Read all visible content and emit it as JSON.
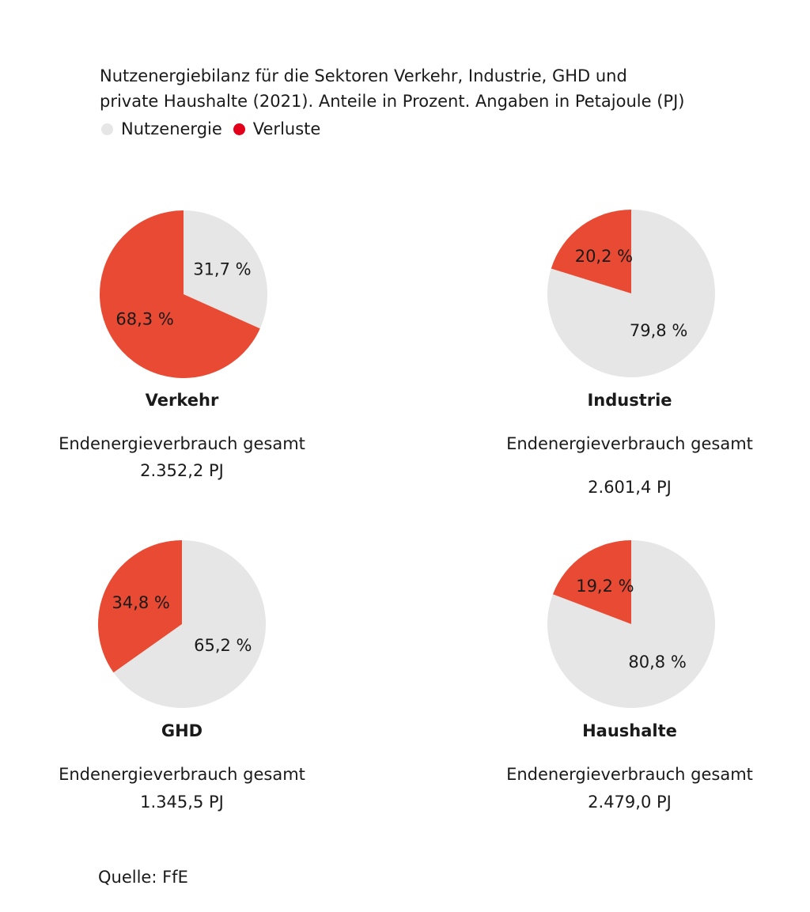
{
  "title_lines": [
    "Nutzenergiebilanz für die Sektoren Verkehr, Industrie, GHD und",
    "private Haushalte (2021). Anteile in Prozent. Angaben in Petajoule (PJ)"
  ],
  "legend": [
    {
      "label": "Nutzenergie",
      "color": "#e6e6e6"
    },
    {
      "label": "Verluste",
      "color": "#e3001b"
    }
  ],
  "colors": {
    "nutzenergie": "#e6e6e6",
    "verluste": "#e84a33"
  },
  "chart_data": [
    {
      "type": "pie",
      "title": "Verkehr",
      "subtitle": "Endenergieverbrauch gesamt",
      "total": "2.352,2 PJ",
      "slices": [
        {
          "name": "Nutzenergie",
          "value": 31.7,
          "label": "31,7 %"
        },
        {
          "name": "Verluste",
          "value": 68.3,
          "label": "68,3 %"
        }
      ]
    },
    {
      "type": "pie",
      "title": "Industrie",
      "subtitle": "Endenergieverbrauch gesamt",
      "total": "2.601,4 PJ",
      "slices": [
        {
          "name": "Nutzenergie",
          "value": 79.8,
          "label": "79,8 %"
        },
        {
          "name": "Verluste",
          "value": 20.2,
          "label": "20,2 %"
        }
      ]
    },
    {
      "type": "pie",
      "title": "GHD",
      "subtitle": "Endenergieverbrauch gesamt",
      "total": "1.345,5 PJ",
      "slices": [
        {
          "name": "Nutzenergie",
          "value": 65.2,
          "label": "65,2 %"
        },
        {
          "name": "Verluste",
          "value": 34.8,
          "label": "34,8 %"
        }
      ]
    },
    {
      "type": "pie",
      "title": "Haushalte",
      "subtitle": "Endenergieverbrauch gesamt",
      "total": "2.479,0 PJ",
      "slices": [
        {
          "name": "Nutzenergie",
          "value": 80.8,
          "label": "80,8 %"
        },
        {
          "name": "Verluste",
          "value": 19.2,
          "label": "19,2 %"
        }
      ]
    }
  ],
  "source": "Quelle: FfE"
}
